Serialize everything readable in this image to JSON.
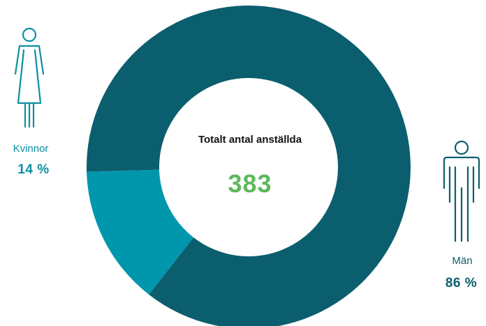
{
  "chart_data": {
    "type": "pie",
    "center_title": "Totalt antal anställda",
    "center_total": "383",
    "slices": [
      {
        "label": "Kvinnor",
        "value": 14,
        "value_text": "14 %",
        "color": "#0097ad",
        "icon": "woman-icon"
      },
      {
        "label": "Män",
        "value": 86,
        "value_text": "86 %",
        "color": "#0b5e6e",
        "icon": "man-icon"
      }
    ],
    "legend": "beside-icons"
  },
  "colors": {
    "women": "#0097ad",
    "men": "#0b5e6e",
    "total": "#5cb85c",
    "label_women": "#0a8fa3",
    "label_men": "#0b5e6e"
  }
}
